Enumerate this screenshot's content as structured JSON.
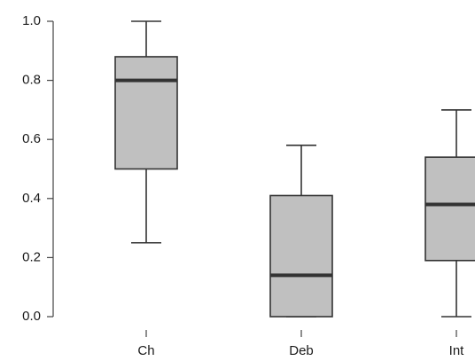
{
  "chart_data": {
    "type": "box",
    "title": "",
    "xlabel": "",
    "ylabel": "",
    "ylim": [
      0,
      1.0
    ],
    "yticks": [
      0.0,
      0.2,
      0.4,
      0.6,
      0.8,
      1.0
    ],
    "ytick_labels": [
      "0.0",
      "0.2",
      "0.4",
      "0.6",
      "0.8",
      "1.0"
    ],
    "categories": [
      "Ch",
      "Deb",
      "Int"
    ],
    "boxes": [
      {
        "min": 0.25,
        "q1": 0.5,
        "median": 0.8,
        "q3": 0.88,
        "max": 1.0
      },
      {
        "min": 0.0,
        "q1": 0.0,
        "median": 0.14,
        "q3": 0.41,
        "max": 0.58
      },
      {
        "min": 0.0,
        "q1": 0.19,
        "median": 0.38,
        "q3": 0.54,
        "max": 0.7
      }
    ],
    "box_color": "#c0c0c0",
    "line_color": "#333333",
    "grid": false,
    "legend": "none"
  }
}
